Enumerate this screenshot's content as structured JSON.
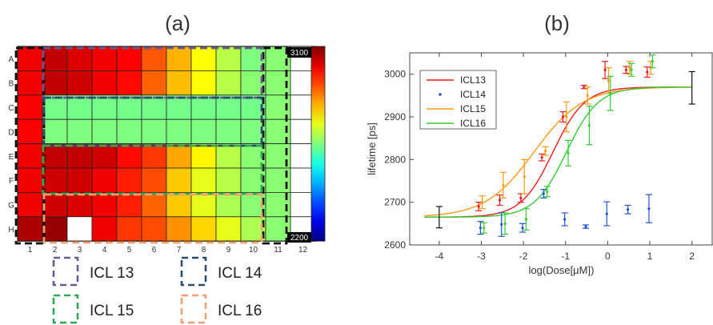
{
  "panel_labels": [
    "(a)",
    "(b)"
  ],
  "colors": {
    "ICL13": "#ee1c1c",
    "ICL14": "#2255cc",
    "ICL15": "#ff9911",
    "ICL16": "#33cc33",
    "box_ICL13": "#6b5a8e",
    "box_ICL14": "#2c4d6e",
    "box_ICL15": "#2eaa55",
    "box_ICL16": "#f0a070",
    "control_box": "#111111"
  },
  "chart_data": [
    {
      "type": "heatmap",
      "rows": [
        "A",
        "B",
        "C",
        "D",
        "E",
        "F",
        "G",
        "H"
      ],
      "columns": [
        "1",
        "2",
        "3",
        "4",
        "5",
        "6",
        "7",
        "8",
        "9",
        "10",
        "11",
        "12"
      ],
      "colorbar": {
        "min": 2200,
        "max": 3100,
        "min_label": "2200",
        "max_label": "3100",
        "colormap": "jet"
      },
      "values": [
        [
          3000,
          3040,
          3020,
          3000,
          2990,
          2910,
          2830,
          2760,
          2700,
          2650,
          2660,
          null
        ],
        [
          3000,
          3040,
          3030,
          3000,
          2980,
          2900,
          2820,
          2760,
          2700,
          2660,
          2660,
          null
        ],
        [
          2990,
          2640,
          2640,
          2640,
          2640,
          2640,
          2640,
          2640,
          2640,
          2640,
          2660,
          null
        ],
        [
          2990,
          2650,
          2650,
          2650,
          2650,
          2650,
          2650,
          2650,
          2650,
          2650,
          2660,
          null
        ],
        [
          3000,
          3040,
          3040,
          3030,
          2980,
          2940,
          2840,
          2770,
          2700,
          2660,
          2660,
          null
        ],
        [
          3000,
          3030,
          3030,
          3000,
          2960,
          2920,
          2810,
          2740,
          2700,
          2660,
          2660,
          null
        ],
        [
          3000,
          3030,
          3020,
          3000,
          2960,
          2900,
          2810,
          2740,
          2690,
          2660,
          2660,
          null
        ],
        [
          3060,
          3080,
          null,
          3000,
          2940,
          2920,
          2860,
          2800,
          2740,
          2690,
          2660,
          null
        ]
      ],
      "annotations": [
        "ICL 13",
        "ICL 14",
        "ICL 15",
        "ICL 16"
      ]
    },
    {
      "type": "scatter",
      "xlabel": "log(Dose[μM])",
      "ylabel": "lifetime [ps]",
      "xlim": [
        -4.7,
        2.5
      ],
      "ylim": [
        2600,
        3050
      ],
      "xticks": [
        -4,
        -3,
        -2,
        -1,
        0,
        1,
        2
      ],
      "xtick_labels": [
        "-4",
        "-3",
        "-2",
        "-1",
        "0",
        "1",
        "2"
      ],
      "yticks": [
        2600,
        2700,
        2800,
        2900,
        3000
      ],
      "ytick_labels": [
        "2600",
        "2700",
        "2800",
        "2900",
        "3000"
      ],
      "legend_position": "top-left",
      "controls": [
        {
          "x": -4,
          "y": 2665,
          "err": 25
        },
        {
          "x": 2,
          "y": 2968,
          "err": 38
        }
      ],
      "series": [
        {
          "name": "ICL13",
          "fit": "sigmoid",
          "fit_bottom": 2665,
          "fit_top": 2970,
          "fit_logEC50": -1.3,
          "fit_hill": 1.15,
          "points": [
            {
              "x": -3.0,
              "y": 2690,
              "err": 10
            },
            {
              "x": -2.5,
              "y": 2705,
              "err": 12
            },
            {
              "x": -2.0,
              "y": 2710,
              "err": 10
            },
            {
              "x": -1.5,
              "y": 2805,
              "err": 8
            },
            {
              "x": -1.0,
              "y": 2900,
              "err": 12
            },
            {
              "x": -0.5,
              "y": 2970,
              "err": 4
            },
            {
              "x": 0.0,
              "y": 3010,
              "err": 20
            },
            {
              "x": 0.5,
              "y": 3010,
              "err": 8
            },
            {
              "x": 1.0,
              "y": 3005,
              "err": 12
            }
          ]
        },
        {
          "name": "ICL14",
          "points": [
            {
              "x": -3.0,
              "y": 2640,
              "err": 15
            },
            {
              "x": -2.5,
              "y": 2648,
              "err": 28
            },
            {
              "x": -2.0,
              "y": 2640,
              "err": 10
            },
            {
              "x": -1.5,
              "y": 2720,
              "err": 10
            },
            {
              "x": -1.0,
              "y": 2660,
              "err": 15
            },
            {
              "x": -0.5,
              "y": 2643,
              "err": 4
            },
            {
              "x": 0.0,
              "y": 2673,
              "err": 28
            },
            {
              "x": 0.5,
              "y": 2683,
              "err": 10
            },
            {
              "x": 1.0,
              "y": 2685,
              "err": 33
            }
          ]
        },
        {
          "name": "ICL15",
          "fit": "sigmoid",
          "fit_bottom": 2665,
          "fit_top": 2970,
          "fit_logEC50": -1.75,
          "fit_hill": 0.75,
          "points": [
            {
              "x": -3.0,
              "y": 2700,
              "err": 15
            },
            {
              "x": -2.5,
              "y": 2740,
              "err": 30
            },
            {
              "x": -2.0,
              "y": 2760,
              "err": 40
            },
            {
              "x": -1.5,
              "y": 2820,
              "err": 10
            },
            {
              "x": -1.0,
              "y": 2900,
              "err": 35
            },
            {
              "x": -0.5,
              "y": 2950,
              "err": 20
            },
            {
              "x": 0.0,
              "y": 2985,
              "err": 30
            },
            {
              "x": 0.5,
              "y": 3015,
              "err": 15
            },
            {
              "x": 1.0,
              "y": 3015,
              "err": 15
            }
          ]
        },
        {
          "name": "ICL16",
          "fit": "sigmoid",
          "fit_bottom": 2665,
          "fit_top": 2970,
          "fit_logEC50": -0.98,
          "fit_hill": 1.15,
          "points": [
            {
              "x": -3.0,
              "y": 2640,
              "err": 12
            },
            {
              "x": -2.5,
              "y": 2650,
              "err": 25
            },
            {
              "x": -2.0,
              "y": 2660,
              "err": 25
            },
            {
              "x": -1.5,
              "y": 2725,
              "err": 12
            },
            {
              "x": -1.0,
              "y": 2815,
              "err": 30
            },
            {
              "x": -0.5,
              "y": 2880,
              "err": 45
            },
            {
              "x": 0.0,
              "y": 2955,
              "err": 40
            },
            {
              "x": 0.5,
              "y": 3010,
              "err": 15
            },
            {
              "x": 1.0,
              "y": 3030,
              "err": 15
            }
          ]
        }
      ]
    }
  ]
}
